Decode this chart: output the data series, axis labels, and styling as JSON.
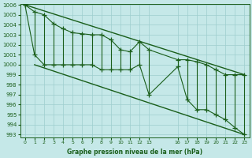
{
  "title": "Graphe pression niveau de la mer (hPa)",
  "background_color": "#c5e8e8",
  "grid_color": "#9ecece",
  "line_color": "#1a5e1a",
  "x_values": [
    0,
    1,
    2,
    3,
    4,
    5,
    6,
    7,
    8,
    9,
    10,
    11,
    12,
    13,
    16,
    17,
    18,
    19,
    20,
    21,
    22,
    23
  ],
  "max_values": [
    1006,
    1005.3,
    1005.0,
    1004.1,
    1003.6,
    1003.2,
    1003.1,
    1003.0,
    1003.0,
    1002.5,
    1001.5,
    1001.3,
    1002.3,
    1001.5,
    1000.5,
    1000.5,
    1000.3,
    1000.0,
    999.5,
    999.0,
    999.0,
    999.0
  ],
  "min_values": [
    1006,
    1001.0,
    1000.0,
    1000.0,
    1000.0,
    1000.0,
    1000.0,
    1000.0,
    999.5,
    999.5,
    999.5,
    999.5,
    1000.0,
    997.0,
    999.8,
    996.5,
    995.5,
    995.5,
    995.0,
    994.5,
    993.7,
    993.0
  ],
  "ylim_min": 993,
  "ylim_max": 1006,
  "yticks": [
    993,
    994,
    995,
    996,
    997,
    998,
    999,
    1000,
    1001,
    1002,
    1003,
    1004,
    1005,
    1006
  ],
  "xtick_positions": [
    0,
    1,
    2,
    3,
    4,
    5,
    6,
    7,
    8,
    9,
    10,
    11,
    12,
    13,
    16,
    17,
    18,
    19,
    20,
    21,
    22,
    23
  ],
  "xtick_labels": [
    "0",
    "1",
    "2",
    "3",
    "4",
    "5",
    "6",
    "7",
    "8",
    "9",
    "10",
    "11",
    "12",
    "13",
    "16",
    "17",
    "18",
    "19",
    "20",
    "21",
    "22",
    "23"
  ]
}
